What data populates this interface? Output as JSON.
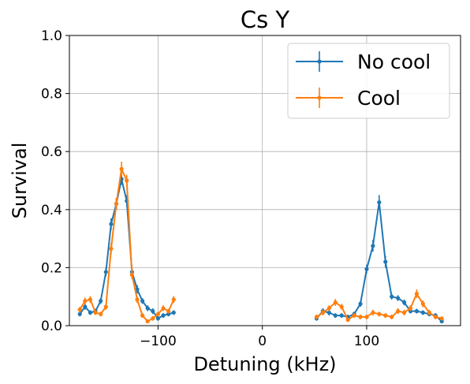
{
  "chart_data": {
    "type": "line",
    "title": "Cs Y",
    "xlabel": "Detuning (kHz)",
    "ylabel": "Survival",
    "xlim": [
      -185,
      190
    ],
    "ylim": [
      0,
      1.0
    ],
    "x_ticks": [
      -100,
      0,
      100
    ],
    "x_tick_labels": [
      "−100",
      "0",
      "100"
    ],
    "y_ticks": [
      0.0,
      0.2,
      0.4,
      0.6,
      0.8,
      1.0
    ],
    "y_tick_labels": [
      "0.0",
      "0.2",
      "0.4",
      "0.6",
      "0.8",
      "1.0"
    ],
    "grid": true,
    "legend_position": "top-right",
    "series": [
      {
        "name": "No cool",
        "color": "#1f77b4",
        "segments": [
          {
            "x": [
              -175,
              -170,
              -165,
              -160,
              -155,
              -150,
              -145,
              -140,
              -135,
              -130,
              -125,
              -120,
              -115,
              -110,
              -105,
              -100,
              -95,
              -90,
              -85
            ],
            "y": [
              0.04,
              0.065,
              0.045,
              0.05,
              0.085,
              0.185,
              0.35,
              0.42,
              0.505,
              0.43,
              0.185,
              0.125,
              0.085,
              0.06,
              0.05,
              0.025,
              0.035,
              0.04,
              0.045
            ],
            "err": [
              0.008,
              0.01,
              0.008,
              0.008,
              0.01,
              0.015,
              0.02,
              0.02,
              0.02,
              0.02,
              0.015,
              0.015,
              0.01,
              0.01,
              0.01,
              0.008,
              0.008,
              0.008,
              0.008
            ]
          },
          {
            "x": [
              52,
              58,
              64,
              70,
              76,
              82,
              88,
              94,
              100,
              106,
              112,
              118,
              124,
              130,
              136,
              142,
              148,
              154,
              160,
              166,
              172
            ],
            "y": [
              0.025,
              0.05,
              0.045,
              0.035,
              0.035,
              0.03,
              0.04,
              0.075,
              0.195,
              0.275,
              0.425,
              0.22,
              0.1,
              0.095,
              0.08,
              0.05,
              0.05,
              0.045,
              0.04,
              0.035,
              0.015
            ],
            "err": [
              0.008,
              0.01,
              0.01,
              0.008,
              0.008,
              0.008,
              0.008,
              0.01,
              0.015,
              0.02,
              0.025,
              0.02,
              0.01,
              0.01,
              0.01,
              0.008,
              0.008,
              0.008,
              0.008,
              0.008,
              0.006
            ]
          }
        ]
      },
      {
        "name": "Cool",
        "color": "#ff7f0e",
        "segments": [
          {
            "x": [
              -175,
              -170,
              -165,
              -160,
              -155,
              -150,
              -145,
              -140,
              -135,
              -130,
              -125,
              -120,
              -115,
              -110,
              -105,
              -100,
              -95,
              -90,
              -85
            ],
            "y": [
              0.055,
              0.085,
              0.09,
              0.045,
              0.04,
              0.065,
              0.265,
              0.42,
              0.54,
              0.5,
              0.175,
              0.09,
              0.035,
              0.015,
              0.025,
              0.04,
              0.06,
              0.05,
              0.09
            ],
            "err": [
              0.01,
              0.012,
              0.012,
              0.008,
              0.008,
              0.01,
              0.02,
              0.02,
              0.025,
              0.02,
              0.015,
              0.012,
              0.008,
              0.006,
              0.008,
              0.008,
              0.01,
              0.008,
              0.012
            ]
          },
          {
            "x": [
              52,
              58,
              64,
              70,
              76,
              82,
              88,
              94,
              100,
              106,
              112,
              118,
              124,
              130,
              136,
              142,
              148,
              154,
              160,
              166,
              172
            ],
            "y": [
              0.03,
              0.045,
              0.06,
              0.08,
              0.065,
              0.02,
              0.035,
              0.03,
              0.03,
              0.045,
              0.04,
              0.035,
              0.03,
              0.05,
              0.045,
              0.06,
              0.11,
              0.075,
              0.045,
              0.03,
              0.025
            ],
            "err": [
              0.008,
              0.01,
              0.01,
              0.012,
              0.01,
              0.006,
              0.008,
              0.008,
              0.008,
              0.01,
              0.008,
              0.008,
              0.008,
              0.01,
              0.01,
              0.01,
              0.015,
              0.012,
              0.01,
              0.008,
              0.006
            ]
          }
        ]
      }
    ]
  }
}
